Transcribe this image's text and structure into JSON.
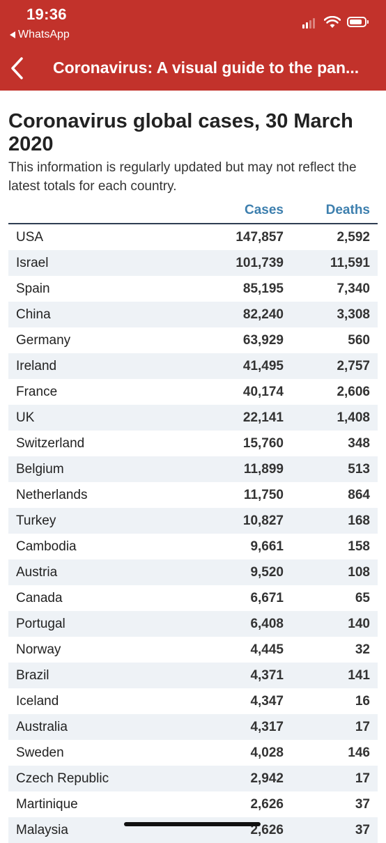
{
  "status_bar": {
    "time": "19:36",
    "back_app": "WhatsApp"
  },
  "nav": {
    "title": "Coronavirus: A visual guide to the pan..."
  },
  "page": {
    "title": "Coronavirus global cases, 30 March 2020",
    "subtitle": "This information is regularly updated but may not reflect the latest totals for each country."
  },
  "table": {
    "columns": [
      "Cases",
      "Deaths"
    ],
    "rows": [
      {
        "country": "USA",
        "cases": "147,857",
        "deaths": "2,592"
      },
      {
        "country": "Israel",
        "cases": "101,739",
        "deaths": "11,591"
      },
      {
        "country": "Spain",
        "cases": "85,195",
        "deaths": "7,340"
      },
      {
        "country": "China",
        "cases": "82,240",
        "deaths": "3,308"
      },
      {
        "country": "Germany",
        "cases": "63,929",
        "deaths": "560"
      },
      {
        "country": "Ireland",
        "cases": "41,495",
        "deaths": "2,757"
      },
      {
        "country": "France",
        "cases": "40,174",
        "deaths": "2,606"
      },
      {
        "country": "UK",
        "cases": "22,141",
        "deaths": "1,408"
      },
      {
        "country": "Switzerland",
        "cases": "15,760",
        "deaths": "348"
      },
      {
        "country": "Belgium",
        "cases": "11,899",
        "deaths": "513"
      },
      {
        "country": "Netherlands",
        "cases": "11,750",
        "deaths": "864"
      },
      {
        "country": "Turkey",
        "cases": "10,827",
        "deaths": "168"
      },
      {
        "country": "Cambodia",
        "cases": "9,661",
        "deaths": "158"
      },
      {
        "country": "Austria",
        "cases": "9,520",
        "deaths": "108"
      },
      {
        "country": "Canada",
        "cases": "6,671",
        "deaths": "65"
      },
      {
        "country": "Portugal",
        "cases": "6,408",
        "deaths": "140"
      },
      {
        "country": "Norway",
        "cases": "4,445",
        "deaths": "32"
      },
      {
        "country": "Brazil",
        "cases": "4,371",
        "deaths": "141"
      },
      {
        "country": "Iceland",
        "cases": "4,347",
        "deaths": "16"
      },
      {
        "country": "Australia",
        "cases": "4,317",
        "deaths": "17"
      },
      {
        "country": "Sweden",
        "cases": "4,028",
        "deaths": "146"
      },
      {
        "country": "Czech Republic",
        "cases": "2,942",
        "deaths": "17"
      },
      {
        "country": "Martinique",
        "cases": "2,626",
        "deaths": "37"
      },
      {
        "country": "Malaysia",
        "cases": "2,626",
        "deaths": "37"
      }
    ]
  },
  "colors": {
    "header_bg": "#c2322b",
    "column_header": "#3d7fae",
    "row_alt": "#eef2f6",
    "header_rule": "#2f3d52"
  },
  "icons": {
    "status_back": "back-triangle-icon",
    "signal": "cellular-signal-icon",
    "wifi": "wifi-icon",
    "battery": "battery-icon",
    "nav_back": "chevron-left-icon"
  }
}
